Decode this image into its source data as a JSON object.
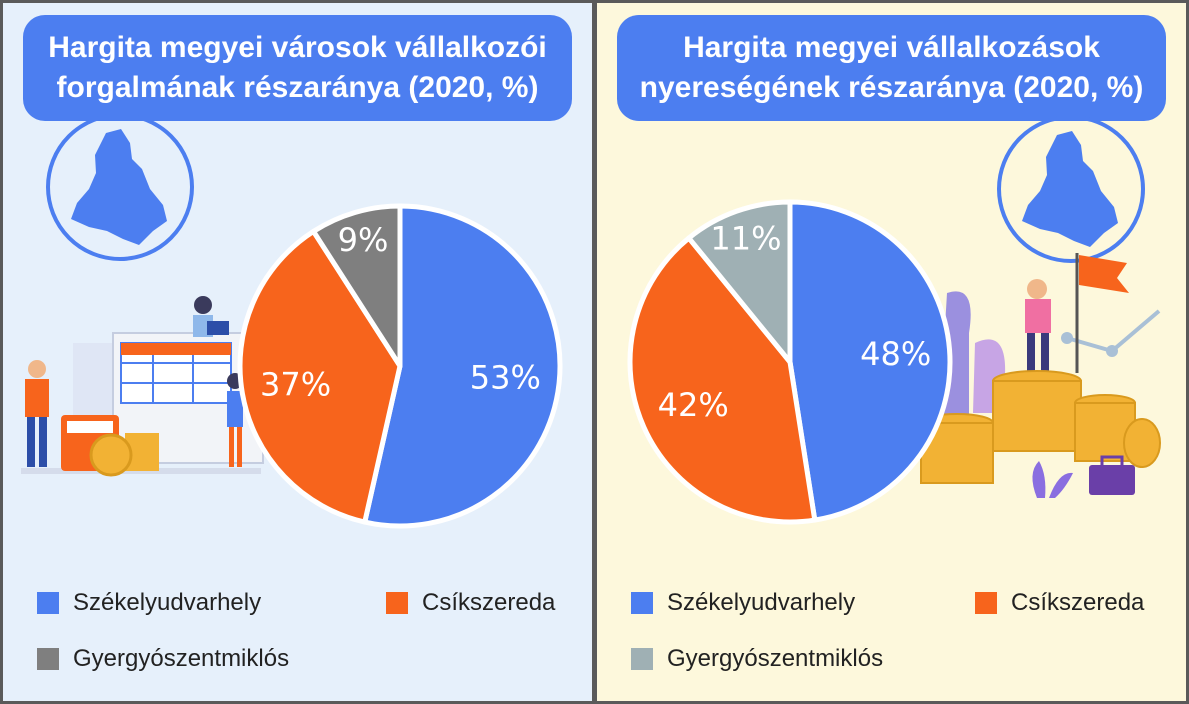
{
  "colors": {
    "Székelyudvarhely": "#4c7ef0",
    "Csíkszereda": "#f7641c",
    "Gyergyószentmiklós": "#7f7f7f",
    "Gyergyószentmiklós_right": "#9fb0b4"
  },
  "chart_data": [
    {
      "type": "pie",
      "title": "Hargita megyei városok vállalkozói forgalmának részaránya (2020, %)",
      "title_lines": [
        "Hargita megyei városok vállalkozói",
        "forgalmának részaránya (2020, %)"
      ],
      "unit": "%",
      "slices": [
        {
          "label": "Székelyudvarhely",
          "value": 53,
          "display": "53%",
          "color": "#4c7ef0"
        },
        {
          "label": "Csíkszereda",
          "value": 37,
          "display": "37%",
          "color": "#f7641c"
        },
        {
          "label": "Gyergyószentmiklós",
          "value": 9,
          "display": "9%",
          "color": "#7f7f7f"
        }
      ],
      "legend": [
        "Székelyudvarhely",
        "Csíkszereda",
        "Gyergyószentmiklós"
      ],
      "legend_placement": "bottom"
    },
    {
      "type": "pie",
      "title": "Hargita megyei vállalkozások nyereségének részaránya (2020, %)",
      "title_lines": [
        "Hargita megyei vállalkozások",
        "nyereségének részaránya (2020, %)"
      ],
      "unit": "%",
      "slices": [
        {
          "label": "Székelyudvarhely",
          "value": 48,
          "display": "48%",
          "color": "#4c7ef0"
        },
        {
          "label": "Csíkszereda",
          "value": 42,
          "display": "42%",
          "color": "#f7641c"
        },
        {
          "label": "Gyergyószentmiklós",
          "value": 11,
          "display": "11%",
          "color": "#9fb0b4"
        }
      ],
      "legend": [
        "Székelyudvarhely",
        "Csíkszereda",
        "Gyergyószentmiklós"
      ],
      "legend_placement": "bottom"
    }
  ]
}
